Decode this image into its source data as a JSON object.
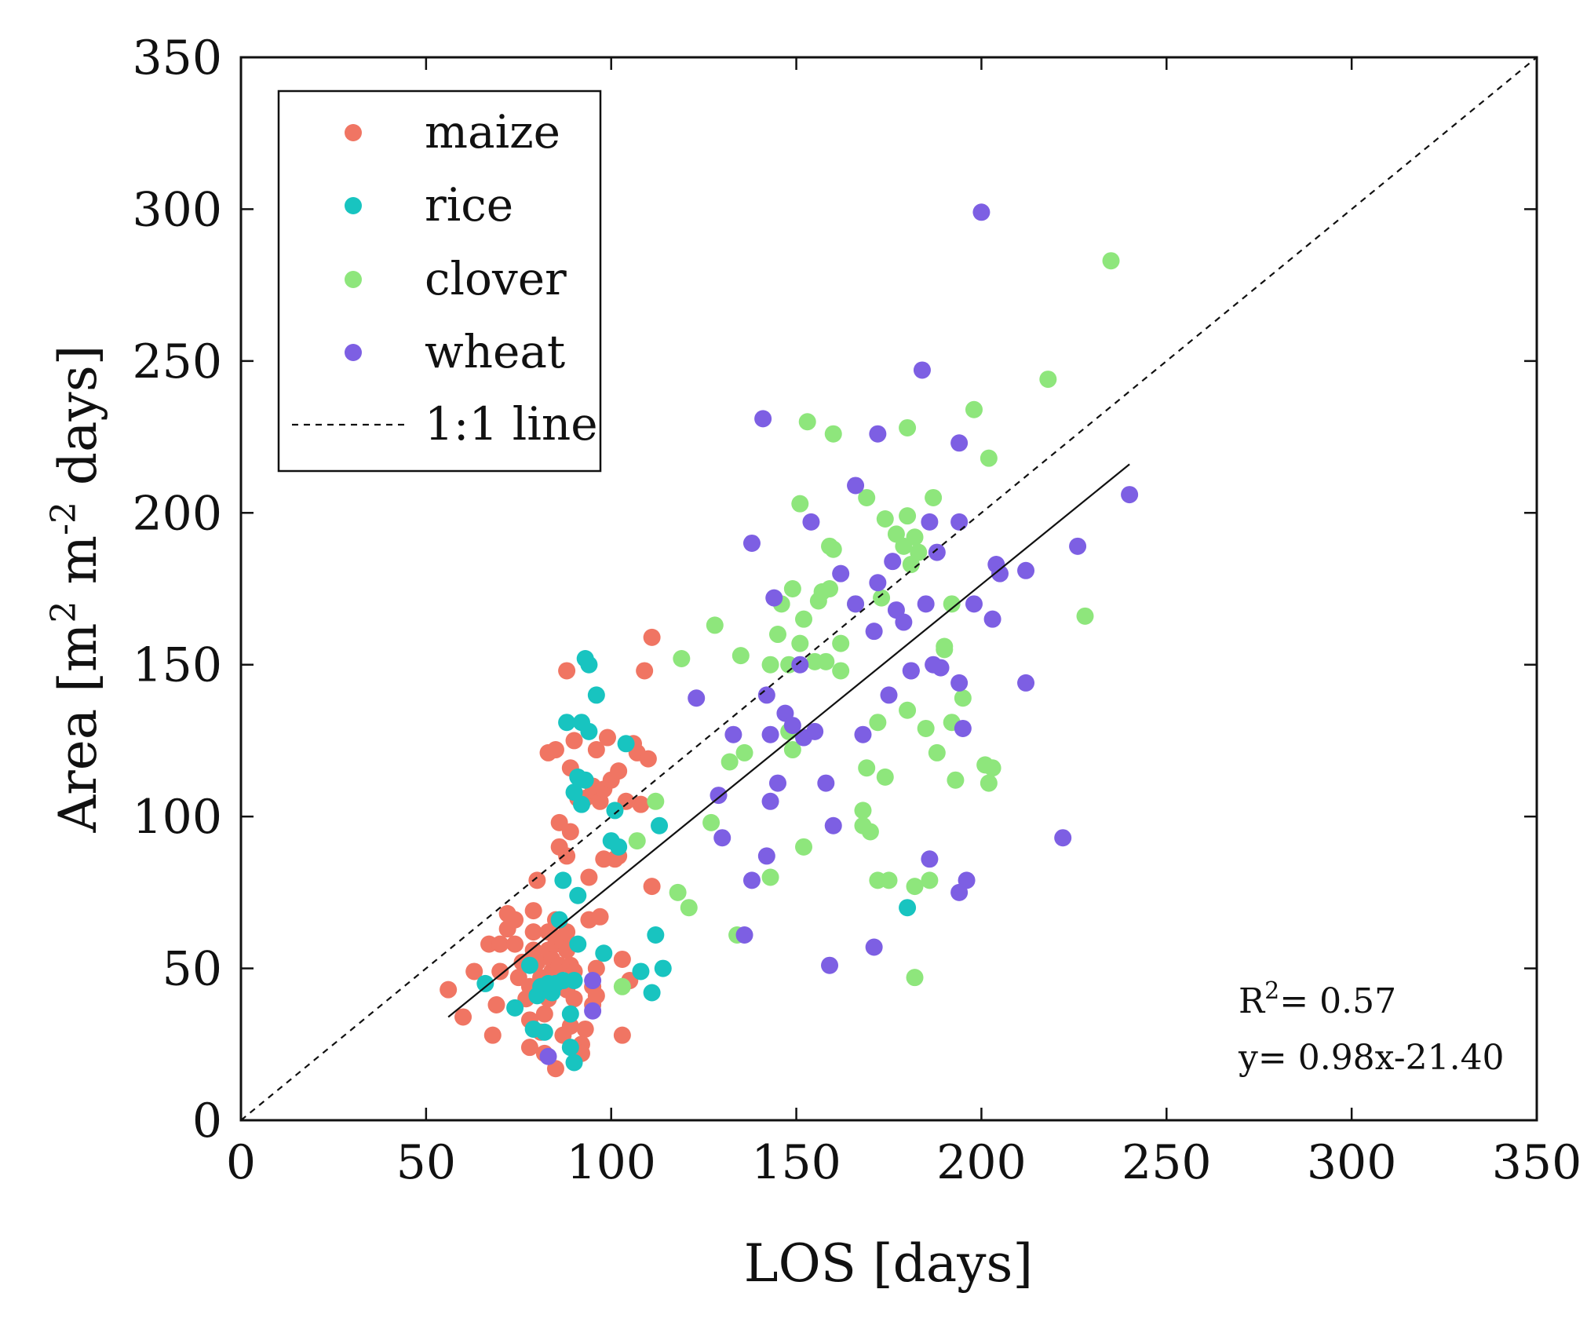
{
  "chart_data": {
    "type": "scatter",
    "xlabel": "LOS [days]",
    "ylabel": "Area [m² m⁻² days]",
    "ylabel_parts": {
      "a": "Area [m",
      "b": "2",
      "c": " m",
      "d": "-2",
      "e": " days]"
    },
    "xlim": [
      0,
      350
    ],
    "ylim": [
      0,
      350
    ],
    "xticks": [
      "0",
      "50",
      "100",
      "150",
      "200",
      "250",
      "300",
      "350"
    ],
    "yticks": [
      "0",
      "50",
      "100",
      "150",
      "200",
      "250",
      "300",
      "350"
    ],
    "grid": false,
    "legend_position": "top-left",
    "legend": [
      {
        "label": "maize",
        "marker": "dot",
        "color": "#f07563"
      },
      {
        "label": "rice",
        "marker": "dot",
        "color": "#18c4c0"
      },
      {
        "label": "clover",
        "marker": "dot",
        "color": "#8ee67c"
      },
      {
        "label": "wheat",
        "marker": "dot",
        "color": "#7d5fe3"
      },
      {
        "label": "1:1 line",
        "marker": "dashed-line",
        "color": "#111111"
      }
    ],
    "annotations": {
      "r2_base": "R",
      "r2_sup": "2",
      "r2_value": "= 0.57",
      "equation": "y= 0.98x-21.40"
    },
    "one_to_one_line": {
      "x": [
        0,
        350
      ],
      "y": [
        0,
        350
      ]
    },
    "regression_line": {
      "x": [
        56,
        240
      ],
      "y": [
        34,
        216
      ]
    },
    "series": [
      {
        "name": "maize",
        "color": "#f07563",
        "points": [
          [
            56,
            43
          ],
          [
            60,
            34
          ],
          [
            63,
            49
          ],
          [
            67,
            58
          ],
          [
            68,
            28
          ],
          [
            69,
            38
          ],
          [
            70,
            49
          ],
          [
            70,
            58
          ],
          [
            72,
            63
          ],
          [
            72,
            68
          ],
          [
            74,
            66
          ],
          [
            74,
            58
          ],
          [
            75,
            47
          ],
          [
            76,
            52
          ],
          [
            77,
            40
          ],
          [
            78,
            44
          ],
          [
            78,
            33
          ],
          [
            78,
            24
          ],
          [
            79,
            56
          ],
          [
            79,
            69
          ],
          [
            79,
            62
          ],
          [
            80,
            52
          ],
          [
            80,
            79
          ],
          [
            81,
            47
          ],
          [
            81,
            29
          ],
          [
            82,
            35
          ],
          [
            82,
            22
          ],
          [
            82,
            43
          ],
          [
            83,
            40
          ],
          [
            83,
            56
          ],
          [
            83,
            62
          ],
          [
            83,
            121
          ],
          [
            84,
            49
          ],
          [
            84,
            53
          ],
          [
            85,
            66
          ],
          [
            85,
            17
          ],
          [
            85,
            122
          ],
          [
            85,
            58
          ],
          [
            86,
            60
          ],
          [
            86,
            51
          ],
          [
            86,
            90
          ],
          [
            86,
            98
          ],
          [
            86,
            45
          ],
          [
            87,
            28
          ],
          [
            87,
            59
          ],
          [
            88,
            43
          ],
          [
            88,
            56
          ],
          [
            88,
            62
          ],
          [
            88,
            148
          ],
          [
            88,
            87
          ],
          [
            89,
            116
          ],
          [
            89,
            95
          ],
          [
            89,
            51
          ],
          [
            89,
            31
          ],
          [
            90,
            125
          ],
          [
            90,
            40
          ],
          [
            90,
            49
          ],
          [
            91,
            106
          ],
          [
            92,
            25
          ],
          [
            92,
            22
          ],
          [
            93,
            30
          ],
          [
            93,
            106
          ],
          [
            94,
            66
          ],
          [
            94,
            80
          ],
          [
            95,
            38
          ],
          [
            95,
            110
          ],
          [
            95,
            44
          ],
          [
            96,
            122
          ],
          [
            96,
            108
          ],
          [
            96,
            41
          ],
          [
            96,
            50
          ],
          [
            97,
            67
          ],
          [
            97,
            105
          ],
          [
            98,
            109
          ],
          [
            98,
            86
          ],
          [
            99,
            126
          ],
          [
            100,
            112
          ],
          [
            101,
            86
          ],
          [
            102,
            115
          ],
          [
            102,
            87
          ],
          [
            103,
            28
          ],
          [
            103,
            53
          ],
          [
            104,
            105
          ],
          [
            105,
            46
          ],
          [
            106,
            124
          ],
          [
            107,
            121
          ],
          [
            108,
            104
          ],
          [
            109,
            148
          ],
          [
            110,
            119
          ],
          [
            111,
            77
          ],
          [
            111,
            159
          ]
        ]
      },
      {
        "name": "rice",
        "color": "#18c4c0",
        "points": [
          [
            66,
            45
          ],
          [
            74,
            37
          ],
          [
            78,
            51
          ],
          [
            79,
            30
          ],
          [
            80,
            41
          ],
          [
            81,
            44
          ],
          [
            82,
            29
          ],
          [
            83,
            45
          ],
          [
            84,
            42
          ],
          [
            85,
            45
          ],
          [
            86,
            66
          ],
          [
            87,
            46
          ],
          [
            87,
            79
          ],
          [
            88,
            131
          ],
          [
            89,
            35
          ],
          [
            89,
            24
          ],
          [
            90,
            19
          ],
          [
            90,
            108
          ],
          [
            90,
            46
          ],
          [
            91,
            113
          ],
          [
            91,
            74
          ],
          [
            91,
            58
          ],
          [
            92,
            104
          ],
          [
            92,
            131
          ],
          [
            93,
            152
          ],
          [
            93,
            112
          ],
          [
            94,
            128
          ],
          [
            94,
            150
          ],
          [
            96,
            140
          ],
          [
            98,
            55
          ],
          [
            100,
            92
          ],
          [
            101,
            102
          ],
          [
            102,
            90
          ],
          [
            104,
            124
          ],
          [
            108,
            49
          ],
          [
            111,
            42
          ],
          [
            112,
            61
          ],
          [
            113,
            97
          ],
          [
            114,
            50
          ],
          [
            180,
            70
          ]
        ]
      },
      {
        "name": "clover",
        "color": "#8ee67c",
        "points": [
          [
            103,
            44
          ],
          [
            107,
            92
          ],
          [
            112,
            105
          ],
          [
            118,
            75
          ],
          [
            119,
            152
          ],
          [
            121,
            70
          ],
          [
            127,
            98
          ],
          [
            128,
            163
          ],
          [
            132,
            118
          ],
          [
            134,
            61
          ],
          [
            135,
            153
          ],
          [
            136,
            121
          ],
          [
            143,
            80
          ],
          [
            143,
            150
          ],
          [
            145,
            160
          ],
          [
            146,
            170
          ],
          [
            148,
            150
          ],
          [
            148,
            128
          ],
          [
            149,
            122
          ],
          [
            149,
            175
          ],
          [
            151,
            157
          ],
          [
            151,
            203
          ],
          [
            152,
            165
          ],
          [
            152,
            90
          ],
          [
            153,
            230
          ],
          [
            155,
            151
          ],
          [
            156,
            171
          ],
          [
            157,
            174
          ],
          [
            158,
            151
          ],
          [
            159,
            189
          ],
          [
            159,
            175
          ],
          [
            160,
            226
          ],
          [
            160,
            188
          ],
          [
            162,
            148
          ],
          [
            162,
            157
          ],
          [
            166,
            170
          ],
          [
            168,
            102
          ],
          [
            168,
            97
          ],
          [
            169,
            116
          ],
          [
            169,
            205
          ],
          [
            170,
            95
          ],
          [
            172,
            79
          ],
          [
            172,
            131
          ],
          [
            173,
            172
          ],
          [
            174,
            198
          ],
          [
            174,
            113
          ],
          [
            175,
            79
          ],
          [
            177,
            193
          ],
          [
            179,
            189
          ],
          [
            180,
            135
          ],
          [
            180,
            228
          ],
          [
            180,
            199
          ],
          [
            181,
            183
          ],
          [
            182,
            192
          ],
          [
            182,
            77
          ],
          [
            182,
            47
          ],
          [
            183,
            187
          ],
          [
            185,
            129
          ],
          [
            186,
            79
          ],
          [
            187,
            205
          ],
          [
            188,
            121
          ],
          [
            190,
            155
          ],
          [
            190,
            156
          ],
          [
            192,
            170
          ],
          [
            192,
            131
          ],
          [
            193,
            112
          ],
          [
            195,
            139
          ],
          [
            198,
            234
          ],
          [
            201,
            117
          ],
          [
            202,
            111
          ],
          [
            202,
            218
          ],
          [
            203,
            116
          ],
          [
            218,
            244
          ],
          [
            228,
            166
          ],
          [
            235,
            283
          ]
        ]
      },
      {
        "name": "wheat",
        "color": "#7d5fe3",
        "points": [
          [
            83,
            21
          ],
          [
            95,
            36
          ],
          [
            95,
            46
          ],
          [
            123,
            139
          ],
          [
            129,
            107
          ],
          [
            130,
            93
          ],
          [
            133,
            127
          ],
          [
            136,
            61
          ],
          [
            138,
            190
          ],
          [
            138,
            79
          ],
          [
            141,
            231
          ],
          [
            142,
            87
          ],
          [
            142,
            140
          ],
          [
            143,
            105
          ],
          [
            143,
            127
          ],
          [
            144,
            172
          ],
          [
            145,
            111
          ],
          [
            147,
            134
          ],
          [
            149,
            130
          ],
          [
            151,
            150
          ],
          [
            152,
            126
          ],
          [
            154,
            197
          ],
          [
            155,
            128
          ],
          [
            158,
            111
          ],
          [
            159,
            51
          ],
          [
            160,
            97
          ],
          [
            162,
            180
          ],
          [
            166,
            209
          ],
          [
            166,
            170
          ],
          [
            168,
            127
          ],
          [
            171,
            57
          ],
          [
            171,
            161
          ],
          [
            172,
            177
          ],
          [
            172,
            226
          ],
          [
            175,
            140
          ],
          [
            176,
            184
          ],
          [
            177,
            168
          ],
          [
            179,
            164
          ],
          [
            181,
            148
          ],
          [
            181,
            148
          ],
          [
            184,
            247
          ],
          [
            185,
            170
          ],
          [
            186,
            197
          ],
          [
            186,
            86
          ],
          [
            187,
            150
          ],
          [
            188,
            187
          ],
          [
            189,
            149
          ],
          [
            194,
            223
          ],
          [
            194,
            197
          ],
          [
            194,
            144
          ],
          [
            194,
            75
          ],
          [
            195,
            129
          ],
          [
            196,
            79
          ],
          [
            198,
            170
          ],
          [
            200,
            299
          ],
          [
            203,
            165
          ],
          [
            204,
            183
          ],
          [
            205,
            180
          ],
          [
            212,
            181
          ],
          [
            212,
            144
          ],
          [
            222,
            93
          ],
          [
            226,
            189
          ],
          [
            240,
            206
          ]
        ]
      }
    ]
  }
}
